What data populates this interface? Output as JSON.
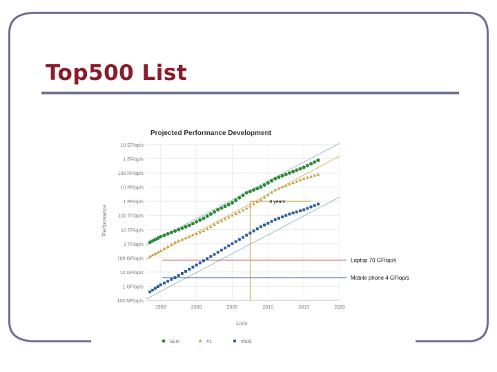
{
  "slide": {
    "title": "Top500 List",
    "colors": {
      "title": "#8b1c2b",
      "frame": "#6e6e96",
      "rule": "#6e6e96"
    }
  },
  "chart_data": {
    "type": "scatter",
    "title": "Projected Performance Development",
    "xlabel": "Lists",
    "ylabel": "Performance",
    "x_ticks": [
      1995,
      2000,
      2005,
      2010,
      2015,
      2020
    ],
    "xlim": [
      1993,
      2020
    ],
    "y_scale": "log10",
    "ylim_log10_flops": [
      8,
      19
    ],
    "y_ticks": [
      {
        "log10": 19,
        "label": "10 EFlop/s"
      },
      {
        "log10": 18,
        "label": "1 EFlop/s"
      },
      {
        "log10": 17,
        "label": "100 PFlop/s"
      },
      {
        "log10": 16,
        "label": "10 PFlop/s"
      },
      {
        "log10": 15,
        "label": "1 PFlop/s"
      },
      {
        "log10": 14,
        "label": "100 TFlop/s"
      },
      {
        "log10": 13,
        "label": "10 TFlop/s"
      },
      {
        "log10": 12,
        "label": "1 TFlop/s"
      },
      {
        "log10": 11,
        "label": "100 GFlop/s"
      },
      {
        "log10": 10,
        "label": "10 GFlop/s"
      },
      {
        "log10": 9,
        "label": "1 GFlop/s"
      },
      {
        "log10": 8,
        "label": "100 MFlop/s"
      }
    ],
    "grid": true,
    "legend_position": "bottom",
    "series": [
      {
        "name": "Sum",
        "marker": "circle",
        "color": "#2e8b3a",
        "x": [
          1993.5,
          1995,
          1997,
          1999,
          2001,
          2003,
          2005,
          2007,
          2009,
          2011,
          2013,
          2015,
          2017
        ],
        "y_log10": [
          12.1,
          12.5,
          12.9,
          13.3,
          13.8,
          14.4,
          14.9,
          15.6,
          16.0,
          16.6,
          17.0,
          17.4,
          17.9
        ]
      },
      {
        "name": "#1",
        "marker": "triangle",
        "color": "#c8a24a",
        "x": [
          1993.5,
          1995,
          1997,
          1999,
          2001,
          2003,
          2005,
          2007,
          2009,
          2011,
          2013,
          2015,
          2017
        ],
        "y_log10": [
          11.1,
          11.5,
          12.1,
          12.5,
          12.9,
          13.5,
          14.0,
          14.5,
          15.1,
          15.8,
          16.2,
          16.6,
          16.9
        ]
      },
      {
        "name": "#500",
        "marker": "square",
        "color": "#2a5f9e",
        "x": [
          1993.5,
          1995,
          1997,
          1999,
          2001,
          2003,
          2005,
          2007,
          2009,
          2011,
          2013,
          2015,
          2017
        ],
        "y_log10": [
          8.6,
          9.1,
          9.6,
          10.2,
          10.8,
          11.4,
          12.0,
          12.6,
          13.2,
          13.7,
          14.1,
          14.4,
          14.8
        ]
      }
    ],
    "trend_lines": [
      {
        "series": "Sum",
        "color": "#9ab9c9",
        "x": [
          1993,
          2020
        ],
        "y_log10": [
          11.9,
          19.1
        ]
      },
      {
        "series": "#1",
        "color": "#d8b868",
        "x": [
          1993,
          2020
        ],
        "y_log10": [
          10.9,
          18.2
        ]
      },
      {
        "series": "#500",
        "color": "#9ab9c9",
        "x": [
          1993,
          2020
        ],
        "y_log10": [
          8.1,
          15.3
        ]
      }
    ],
    "annotations": [
      {
        "text": "8 years",
        "color": "#c8a24a"
      },
      {
        "text": "Laptop 70 GFlop/s",
        "color": "#a02020",
        "log10": 10.85
      },
      {
        "text": "Mobile phone 4 GFlop/s",
        "color": "#1f4e8c",
        "log10": 9.6
      }
    ]
  }
}
